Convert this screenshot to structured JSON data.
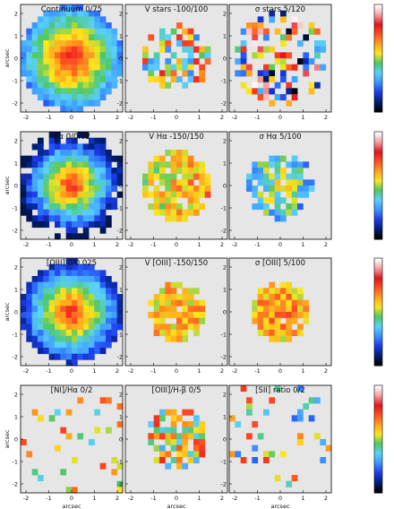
{
  "chart_data": {
    "type": "heatmap",
    "colors": {
      "background": "#e6e6e6",
      "colormap": [
        "#000000",
        "#00207a",
        "#1e3cf0",
        "#3c96ff",
        "#5ad2ff",
        "#4ec864",
        "#ffe61e",
        "#ffa01e",
        "#ff5023",
        "#e6121c",
        "#f3a0a0",
        "#ffffff"
      ]
    },
    "panels": [
      {
        "title": "Continuum   0/75",
        "ylabel": "arcsec",
        "xlabel": "",
        "xticks": [
          "-2",
          "-1",
          "0",
          "1",
          "2"
        ],
        "yticks": [
          "2",
          "1",
          "0",
          "-1",
          "-2"
        ],
        "colorbar": false,
        "map": "continuum"
      },
      {
        "title": "V stars   -100/100",
        "ylabel": "",
        "xlabel": "",
        "xticks": [
          "-2",
          "-1",
          "0",
          "1",
          "2"
        ],
        "yticks": [
          "2",
          "1",
          "0",
          "-1",
          "-2"
        ],
        "colorbar": false,
        "map": "vel"
      },
      {
        "title": "σ stars   5/120",
        "ylabel": "",
        "xlabel": "",
        "xticks": [
          "-2",
          "-1",
          "0",
          "1",
          "2"
        ],
        "yticks": [
          "2",
          "1",
          "0",
          "-1",
          "-2"
        ],
        "colorbar": true,
        "map": "sig"
      },
      {
        "title": "Hα   0/0.02",
        "ylabel": "arcsec",
        "xlabel": "",
        "xticks": [
          "-2",
          "-1",
          "0",
          "1",
          "2"
        ],
        "yticks": [
          "2",
          "1",
          "0",
          "-1",
          "-2"
        ],
        "colorbar": false,
        "map": "halpha"
      },
      {
        "title": "V Hα   -150/150",
        "ylabel": "",
        "xlabel": "",
        "xticks": [
          "-2",
          "-1",
          "0",
          "1",
          "2"
        ],
        "yticks": [
          "2",
          "1",
          "0",
          "-1",
          "-2"
        ],
        "colorbar": false,
        "map": "vgas"
      },
      {
        "title": "σ Hα   5/100",
        "ylabel": "",
        "xlabel": "",
        "xticks": [
          "-2",
          "-1",
          "0",
          "1",
          "2"
        ],
        "yticks": [
          "2",
          "1",
          "0",
          "-1",
          "-2"
        ],
        "colorbar": true,
        "map": "sgas"
      },
      {
        "title": "[OIII]   0/0.025",
        "ylabel": "arcsec",
        "xlabel": "",
        "xticks": [
          "-2",
          "-1",
          "0",
          "1",
          "2"
        ],
        "yticks": [
          "2",
          "1",
          "0",
          "-1",
          "-2"
        ],
        "colorbar": false,
        "map": "oiii"
      },
      {
        "title": "V [OIII]   -150/150",
        "ylabel": "",
        "xlabel": "",
        "xticks": [
          "-2",
          "-1",
          "0",
          "1",
          "2"
        ],
        "yticks": [
          "2",
          "1",
          "0",
          "-1",
          "-2"
        ],
        "colorbar": false,
        "map": "voiii"
      },
      {
        "title": "σ [OIII]   5/100",
        "ylabel": "",
        "xlabel": "",
        "xticks": [
          "-2",
          "-1",
          "0",
          "1",
          "2"
        ],
        "yticks": [
          "2",
          "1",
          "0",
          "-1",
          "-2"
        ],
        "colorbar": true,
        "map": "soiii"
      },
      {
        "title": "[NI]/Hα   0/2",
        "ylabel": "arcsec",
        "xlabel": "arcsec",
        "xticks": [
          "-2",
          "-1",
          "0",
          "1",
          "2"
        ],
        "yticks": [
          "2",
          "1",
          "0",
          "-1",
          "-2"
        ],
        "colorbar": false,
        "map": "nih"
      },
      {
        "title": "[OIII]/H-β   0/5",
        "ylabel": "",
        "xlabel": "arcsec",
        "xticks": [
          "-2",
          "-1",
          "0",
          "1",
          "2"
        ],
        "yticks": [
          "2",
          "1",
          "0",
          "-1",
          "-2"
        ],
        "colorbar": false,
        "map": "oiiihb"
      },
      {
        "title": "[SII] ratio   0/2",
        "ylabel": "",
        "xlabel": "arcsec",
        "xticks": [
          "-2",
          "-1",
          "0",
          "1",
          "2"
        ],
        "yticks": [
          "2",
          "1",
          "0",
          "-1",
          "-2"
        ],
        "colorbar": true,
        "map": "sii"
      }
    ]
  }
}
